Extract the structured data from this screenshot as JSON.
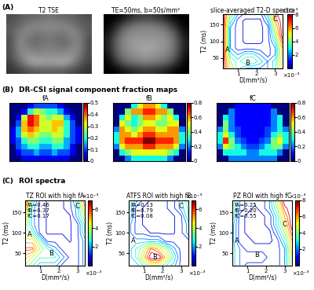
{
  "sections": [
    {
      "label": "(A)"
    },
    {
      "label": "(B)",
      "title": "DR-CSI signal component fraction maps"
    },
    {
      "label": "(C)",
      "title": "ROI spectra"
    }
  ],
  "chart_data": [
    {
      "type": "image",
      "title": "T2 TSE",
      "clim": [
        0,
        1
      ],
      "tick_labels": false,
      "cells": [
        [
          0.3,
          0.35,
          0.4,
          0.4,
          0.45,
          0.45,
          0.4,
          0.4,
          0.35,
          0.3
        ],
        [
          0.35,
          0.4,
          0.5,
          0.55,
          0.55,
          0.55,
          0.55,
          0.5,
          0.4,
          0.35
        ],
        [
          0.35,
          0.5,
          0.55,
          0.45,
          0.5,
          0.5,
          0.45,
          0.55,
          0.5,
          0.35
        ],
        [
          0.3,
          0.55,
          0.45,
          0.4,
          0.45,
          0.45,
          0.4,
          0.45,
          0.55,
          0.3
        ],
        [
          0.3,
          0.55,
          0.5,
          0.45,
          0.5,
          0.5,
          0.45,
          0.5,
          0.55,
          0.3
        ],
        [
          0.3,
          0.5,
          0.6,
          0.55,
          0.55,
          0.55,
          0.55,
          0.6,
          0.5,
          0.3
        ],
        [
          0.25,
          0.4,
          0.6,
          0.7,
          0.65,
          0.65,
          0.7,
          0.6,
          0.4,
          0.25
        ],
        [
          0.2,
          0.25,
          0.3,
          0.35,
          0.35,
          0.35,
          0.35,
          0.3,
          0.25,
          0.2
        ]
      ]
    },
    {
      "type": "image",
      "title": "TE=50ms, b=50s/mm²",
      "clim": [
        0,
        1
      ],
      "tick_labels": false,
      "cells": [
        [
          0,
          0,
          0.1,
          0.2,
          0.25,
          0.25,
          0.2,
          0.1,
          0,
          0
        ],
        [
          0,
          0.15,
          0.35,
          0.45,
          0.5,
          0.5,
          0.45,
          0.35,
          0.15,
          0
        ],
        [
          0.05,
          0.3,
          0.5,
          0.55,
          0.55,
          0.55,
          0.55,
          0.5,
          0.3,
          0.05
        ],
        [
          0.1,
          0.4,
          0.55,
          0.6,
          0.6,
          0.6,
          0.6,
          0.55,
          0.4,
          0.1
        ],
        [
          0.1,
          0.4,
          0.55,
          0.6,
          0.65,
          0.65,
          0.6,
          0.55,
          0.4,
          0.1
        ],
        [
          0.05,
          0.35,
          0.5,
          0.55,
          0.6,
          0.6,
          0.55,
          0.5,
          0.35,
          0.05
        ],
        [
          0,
          0.2,
          0.4,
          0.45,
          0.5,
          0.5,
          0.45,
          0.4,
          0.2,
          0
        ],
        [
          0,
          0,
          0.1,
          0.15,
          0.2,
          0.2,
          0.15,
          0.1,
          0,
          0
        ]
      ]
    },
    {
      "type": "contour",
      "title": "slice-averaged T2-D spectra",
      "xlabel": "D(mm²/s)",
      "ylabel": "T2 (ms)",
      "x_multiplier": "×10⁻³",
      "xlim": [
        0.2,
        3.4
      ],
      "ylim": [
        20,
        180
      ],
      "xticks": [
        1,
        2,
        3
      ],
      "yticks": [
        50,
        100,
        150
      ],
      "D": [
        0.2,
        0.6,
        1.0,
        1.4,
        1.8,
        2.2,
        2.6,
        3.0,
        3.4
      ],
      "T2": [
        20,
        40,
        60,
        80,
        100,
        120,
        140,
        160,
        180
      ],
      "cells": [
        [
          8,
          5,
          3,
          2,
          2,
          2,
          2,
          3,
          6
        ],
        [
          8,
          4,
          3,
          4,
          4,
          3,
          2,
          3,
          6
        ],
        [
          8,
          3,
          2,
          3,
          3,
          2,
          1,
          2,
          6
        ],
        [
          8,
          2,
          1,
          1,
          1,
          1,
          1,
          2,
          6
        ],
        [
          8,
          2,
          1,
          0.5,
          0.5,
          0.5,
          1,
          3,
          7
        ],
        [
          8,
          2,
          1,
          0.5,
          0.5,
          0.5,
          1,
          4,
          8
        ],
        [
          8,
          2,
          1,
          0.5,
          0.5,
          0.5,
          1,
          5,
          8
        ],
        [
          8,
          3,
          1,
          0.5,
          0.5,
          0.5,
          2,
          6,
          8
        ],
        [
          8,
          4,
          2,
          1,
          1,
          1,
          3,
          7,
          8
        ]
      ],
      "colorbar_lim": [
        0,
        8
      ],
      "colorbar_ticks": [
        2,
        4,
        6,
        8
      ],
      "colorbar_multiplier": "×10⁻³",
      "peak_labels": [
        {
          "text": "A",
          "D": 0.45,
          "T2": 75
        },
        {
          "text": "B",
          "D": 1.5,
          "T2": 35
        },
        {
          "text": "C",
          "D": 3.0,
          "T2": 165
        }
      ]
    },
    {
      "type": "heatmap",
      "title": "fA",
      "tick_labels": false,
      "colorbar_lim": [
        0,
        0.5
      ],
      "colorbar_ticks": [
        0,
        0.1,
        0.2,
        0.3,
        0.4,
        0.5
      ],
      "cells": [
        [
          0,
          0,
          0,
          0.05,
          0.1,
          0.1,
          0.1,
          0.1,
          0.05,
          0,
          0,
          0
        ],
        [
          0,
          0,
          0.05,
          0.2,
          0.3,
          0.25,
          0.2,
          0.2,
          0.15,
          0.05,
          0,
          0
        ],
        [
          0,
          0.05,
          0.3,
          0.45,
          0.4,
          0.3,
          0.25,
          0.3,
          0.3,
          0.15,
          0.05,
          0
        ],
        [
          0,
          0.1,
          0.35,
          0.45,
          0.4,
          0.3,
          0.3,
          0.35,
          0.35,
          0.2,
          0.1,
          0
        ],
        [
          0.05,
          0.15,
          0.35,
          0.4,
          0.35,
          0.3,
          0.3,
          0.35,
          0.3,
          0.2,
          0.1,
          0.05
        ],
        [
          0.05,
          0.15,
          0.3,
          0.35,
          0.3,
          0.25,
          0.25,
          0.3,
          0.3,
          0.2,
          0.1,
          0.05
        ],
        [
          0.05,
          0.1,
          0.2,
          0.25,
          0.25,
          0.2,
          0.2,
          0.25,
          0.25,
          0.15,
          0.1,
          0.05
        ],
        [
          0,
          0.1,
          0.15,
          0.2,
          0.2,
          0.15,
          0.15,
          0.2,
          0.2,
          0.15,
          0.05,
          0
        ],
        [
          0,
          0.05,
          0.1,
          0.1,
          0.15,
          0.1,
          0.1,
          0.15,
          0.1,
          0.1,
          0.05,
          0
        ],
        [
          0,
          0,
          0.05,
          0.05,
          0.05,
          0.05,
          0.05,
          0.05,
          0.05,
          0.05,
          0,
          0
        ]
      ]
    },
    {
      "type": "heatmap",
      "title": "fB",
      "tick_labels": false,
      "colorbar_lim": [
        0,
        0.8
      ],
      "colorbar_ticks": [
        0,
        0.2,
        0.4,
        0.6,
        0.8
      ],
      "cells": [
        [
          0,
          0,
          0,
          0.3,
          0.5,
          0.6,
          0.6,
          0.5,
          0.3,
          0,
          0,
          0
        ],
        [
          0,
          0,
          0.4,
          0.6,
          0.6,
          0.7,
          0.7,
          0.6,
          0.6,
          0.4,
          0,
          0
        ],
        [
          0,
          0.3,
          0.5,
          0.3,
          0.4,
          0.6,
          0.6,
          0.5,
          0.4,
          0.5,
          0.3,
          0
        ],
        [
          0,
          0.5,
          0.4,
          0.3,
          0.4,
          0.5,
          0.5,
          0.4,
          0.4,
          0.5,
          0.5,
          0
        ],
        [
          0.2,
          0.6,
          0.5,
          0.4,
          0.5,
          0.6,
          0.6,
          0.5,
          0.5,
          0.6,
          0.6,
          0.2
        ],
        [
          0.3,
          0.6,
          0.6,
          0.5,
          0.6,
          0.7,
          0.7,
          0.6,
          0.6,
          0.6,
          0.6,
          0.3
        ],
        [
          0.3,
          0.6,
          0.7,
          0.7,
          0.7,
          0.8,
          0.8,
          0.7,
          0.7,
          0.7,
          0.6,
          0.3
        ],
        [
          0.2,
          0.5,
          0.6,
          0.6,
          0.6,
          0.7,
          0.7,
          0.6,
          0.6,
          0.6,
          0.5,
          0.2
        ],
        [
          0,
          0.3,
          0.4,
          0.5,
          0.5,
          0.5,
          0.5,
          0.5,
          0.5,
          0.4,
          0.3,
          0
        ],
        [
          0,
          0,
          0.2,
          0.3,
          0.3,
          0.3,
          0.3,
          0.3,
          0.3,
          0.2,
          0,
          0
        ]
      ]
    },
    {
      "type": "heatmap",
      "title": "fC",
      "tick_labels": false,
      "colorbar_lim": [
        0,
        0.8
      ],
      "colorbar_ticks": [
        0,
        0.2,
        0.4,
        0.6,
        0.8
      ],
      "cells": [
        [
          0,
          0,
          0,
          0.1,
          0.1,
          0.1,
          0.1,
          0.1,
          0.1,
          0,
          0,
          0
        ],
        [
          0,
          0,
          0.2,
          0.1,
          0.1,
          0.1,
          0.1,
          0.1,
          0.1,
          0.2,
          0,
          0
        ],
        [
          0,
          0.3,
          0.2,
          0.1,
          0.1,
          0.1,
          0.1,
          0.1,
          0.1,
          0.2,
          0.3,
          0
        ],
        [
          0,
          0.4,
          0.2,
          0.1,
          0.1,
          0.1,
          0.1,
          0.1,
          0.1,
          0.2,
          0.3,
          0
        ],
        [
          0.2,
          0.4,
          0.2,
          0.15,
          0.1,
          0.1,
          0.1,
          0.1,
          0.15,
          0.2,
          0.3,
          0.2
        ],
        [
          0.3,
          0.5,
          0.3,
          0.15,
          0.1,
          0.1,
          0.1,
          0.1,
          0.15,
          0.3,
          0.4,
          0.3
        ],
        [
          0.3,
          0.7,
          0.4,
          0.2,
          0.15,
          0.1,
          0.1,
          0.15,
          0.2,
          0.4,
          0.5,
          0.3
        ],
        [
          0.2,
          0.5,
          0.4,
          0.3,
          0.2,
          0.15,
          0.15,
          0.2,
          0.3,
          0.4,
          0.4,
          0.2
        ],
        [
          0,
          0.3,
          0.3,
          0.3,
          0.3,
          0.2,
          0.2,
          0.3,
          0.3,
          0.3,
          0.2,
          0
        ],
        [
          0,
          0,
          0.2,
          0.2,
          0.2,
          0.2,
          0.2,
          0.2,
          0.2,
          0.2,
          0,
          0
        ]
      ]
    },
    {
      "type": "contour",
      "title": "TZ ROI with high fA",
      "xlabel": "D(mm²/s)",
      "ylabel": "T2 (ms)",
      "x_multiplier": "×10⁻³",
      "xlim": [
        0.2,
        3.4
      ],
      "ylim": [
        20,
        180
      ],
      "xticks": [
        1,
        2,
        3
      ],
      "yticks": [
        50,
        100,
        150
      ],
      "D": [
        0.2,
        0.6,
        1.0,
        1.4,
        1.8,
        2.2,
        2.6,
        3.0,
        3.4
      ],
      "T2": [
        20,
        40,
        60,
        80,
        100,
        120,
        140,
        160,
        180
      ],
      "cells": [
        [
          4,
          3,
          2,
          2,
          2,
          1,
          1,
          1,
          2
        ],
        [
          5,
          4,
          3,
          3,
          3,
          2,
          1,
          1,
          2
        ],
        [
          6,
          6,
          4,
          3,
          2,
          1,
          1,
          1,
          2
        ],
        [
          5,
          5,
          3,
          1,
          1,
          1,
          0.5,
          1,
          2
        ],
        [
          4,
          3,
          1,
          0.5,
          0.5,
          0.5,
          0.5,
          1,
          3
        ],
        [
          4,
          2,
          1,
          0.5,
          0.5,
          0.5,
          0.5,
          1,
          3
        ],
        [
          5,
          2,
          1,
          0.5,
          0.5,
          0.5,
          0.5,
          2,
          4
        ],
        [
          6,
          2,
          1,
          0.5,
          0.5,
          0.5,
          1,
          2,
          5
        ],
        [
          7,
          3,
          1,
          0.5,
          0.5,
          0.5,
          1,
          3,
          6
        ]
      ],
      "colorbar_lim": [
        0,
        7
      ],
      "colorbar_ticks": [
        2,
        4,
        6
      ],
      "colorbar_multiplier": "×10⁻³",
      "fraction_labels": [
        "fA=0.46",
        "fB=0.37",
        "fC=0.17"
      ],
      "peak_labels": [
        {
          "text": "A",
          "D": 0.45,
          "T2": 95
        },
        {
          "text": "B",
          "D": 1.6,
          "T2": 50
        },
        {
          "text": "C",
          "D": 3.0,
          "T2": 165
        }
      ]
    },
    {
      "type": "contour",
      "title": "ATFS ROI with high fB",
      "xlabel": "D(mm²/s)",
      "ylabel": "T2 (ms)",
      "x_multiplier": "×10⁻³",
      "xlim": [
        0.2,
        3.4
      ],
      "ylim": [
        20,
        180
      ],
      "xticks": [
        1,
        2,
        3
      ],
      "yticks": [
        50,
        100,
        150
      ],
      "D": [
        0.2,
        0.6,
        1.0,
        1.4,
        1.8,
        2.2,
        2.6,
        3.0,
        3.4
      ],
      "T2": [
        20,
        40,
        60,
        80,
        100,
        120,
        140,
        160,
        180
      ],
      "cells": [
        [
          2,
          2,
          3,
          4,
          4,
          3,
          2,
          1,
          1
        ],
        [
          2,
          3,
          5,
          7,
          7,
          5,
          3,
          1,
          1
        ],
        [
          2,
          3,
          4,
          6,
          5,
          4,
          2,
          1,
          1
        ],
        [
          2,
          2,
          2,
          2,
          2,
          1,
          1,
          1,
          1
        ],
        [
          2,
          1,
          1,
          0.5,
          0.5,
          0.5,
          0.5,
          1,
          2
        ],
        [
          2,
          1,
          0.5,
          0.5,
          0.5,
          0.5,
          0.5,
          1,
          2
        ],
        [
          3,
          1,
          0.5,
          0.5,
          0.5,
          0.5,
          0.5,
          1,
          3
        ],
        [
          3,
          1,
          0.5,
          0.5,
          0.5,
          0.5,
          1,
          2,
          3
        ],
        [
          4,
          2,
          1,
          0.5,
          0.5,
          0.5,
          1,
          2,
          4
        ]
      ],
      "colorbar_lim": [
        0,
        7
      ],
      "colorbar_ticks": [
        2,
        4,
        6
      ],
      "colorbar_multiplier": "×10⁻³",
      "fraction_labels": [
        "fA=0.13",
        "fB=0.79",
        "fC=0.08"
      ],
      "peak_labels": [
        {
          "text": "A",
          "D": 0.45,
          "T2": 80
        },
        {
          "text": "B",
          "D": 1.6,
          "T2": 40
        },
        {
          "text": "C",
          "D": 3.0,
          "T2": 165
        }
      ]
    },
    {
      "type": "contour",
      "title": "PZ ROI with high fC",
      "xlabel": "D(mm²/s)",
      "ylabel": "T2 (ms)",
      "x_multiplier": "×10⁻³",
      "xlim": [
        0.2,
        3.4
      ],
      "ylim": [
        20,
        180
      ],
      "xticks": [
        1,
        2,
        3
      ],
      "yticks": [
        50,
        100,
        150
      ],
      "D": [
        0.2,
        0.6,
        1.0,
        1.4,
        1.8,
        2.2,
        2.6,
        3.0,
        3.4
      ],
      "T2": [
        20,
        40,
        60,
        80,
        100,
        120,
        140,
        160,
        180
      ],
      "cells": [
        [
          3,
          2,
          1,
          1,
          1,
          1,
          1,
          2,
          5
        ],
        [
          3,
          2,
          2,
          2,
          2,
          1,
          1,
          2,
          5
        ],
        [
          3,
          2,
          1,
          1,
          1,
          1,
          1,
          2,
          6
        ],
        [
          3,
          1,
          1,
          0.5,
          0.5,
          0.5,
          1,
          3,
          6
        ],
        [
          3,
          1,
          0.5,
          0.5,
          0.5,
          0.5,
          2,
          4,
          7
        ],
        [
          3,
          1,
          0.5,
          0.5,
          0.5,
          1,
          3,
          5,
          8
        ],
        [
          4,
          1,
          0.5,
          0.5,
          0.5,
          1,
          3,
          6,
          8
        ],
        [
          4,
          2,
          1,
          0.5,
          1,
          2,
          4,
          7,
          8
        ],
        [
          5,
          2,
          1,
          1,
          1,
          2,
          5,
          8,
          8
        ]
      ],
      "colorbar_lim": [
        0,
        8
      ],
      "colorbar_ticks": [
        2,
        4,
        6,
        8
      ],
      "colorbar_multiplier": "×10⁻³",
      "fraction_labels": [
        "fA=0.25",
        "fB=0.20",
        "fC=0.55"
      ],
      "peak_labels": [
        {
          "text": "A",
          "D": 0.45,
          "T2": 80
        },
        {
          "text": "B",
          "D": 1.5,
          "T2": 45
        },
        {
          "text": "C",
          "D": 3.0,
          "T2": 120
        }
      ]
    }
  ]
}
